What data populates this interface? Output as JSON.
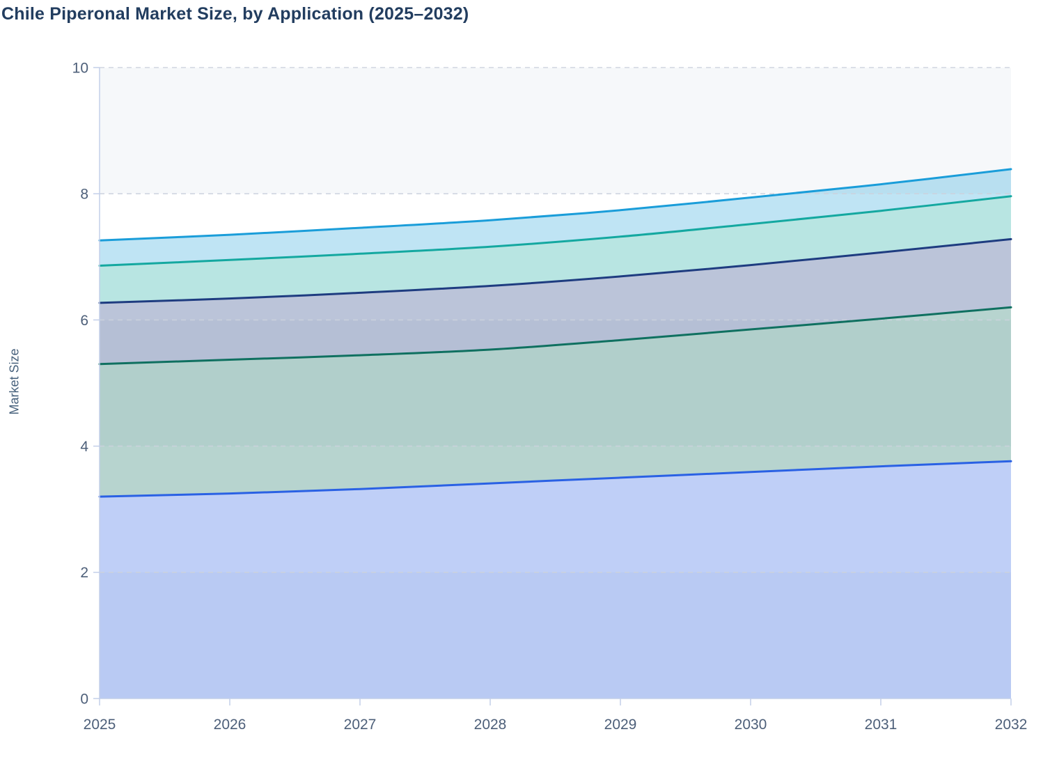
{
  "chart": {
    "title": "Chile Piperonal Market Size, by Application (2025–2032)",
    "ylabel": "Market Size"
  },
  "chart_data": {
    "type": "area",
    "stacked": true,
    "title": "Chile Piperonal Market Size, by Application (2025–2032)",
    "xlabel": "",
    "ylabel": "Market Size",
    "x": [
      2025,
      2026,
      2027,
      2028,
      2029,
      2030,
      2031,
      2032
    ],
    "x_tick_labels": [
      "2025",
      "2026",
      "2027",
      "2028",
      "2029",
      "2030",
      "2031",
      "2032"
    ],
    "y_ticks": [
      0,
      2,
      4,
      6,
      8,
      10
    ],
    "y_tick_labels": [
      "0",
      "2",
      "4",
      "6",
      "8",
      "10"
    ],
    "ylim": [
      0,
      10
    ],
    "grid": "horizontal-dashed",
    "legend_position": "none",
    "series_order": "bottom-to-top (stacked)",
    "series": [
      {
        "values": [
          3.2,
          3.25,
          3.32,
          3.41,
          3.5,
          3.59,
          3.68,
          3.76
        ],
        "cumulative_top": [
          3.2,
          3.25,
          3.32,
          3.41,
          3.5,
          3.59,
          3.68,
          3.76
        ],
        "line_color": "#2a61e4",
        "fill_color": "rgba(42,97,228,0.30)"
      },
      {
        "values": [
          2.1,
          2.12,
          2.12,
          2.12,
          2.18,
          2.26,
          2.34,
          2.44
        ],
        "cumulative_top": [
          5.3,
          5.37,
          5.44,
          5.53,
          5.68,
          5.85,
          6.02,
          6.2
        ],
        "line_color": "#0f7060",
        "fill_color": "rgba(15,112,96,0.30)"
      },
      {
        "values": [
          0.97,
          0.97,
          0.99,
          1.01,
          1.01,
          1.02,
          1.05,
          1.08
        ],
        "cumulative_top": [
          6.27,
          6.34,
          6.43,
          6.54,
          6.69,
          6.87,
          7.07,
          7.28
        ],
        "line_color": "#1e3c80",
        "fill_color": "rgba(30,60,128,0.30)"
      },
      {
        "values": [
          0.59,
          0.61,
          0.62,
          0.62,
          0.63,
          0.65,
          0.66,
          0.68
        ],
        "cumulative_top": [
          6.86,
          6.95,
          7.05,
          7.16,
          7.32,
          7.52,
          7.73,
          7.96
        ],
        "line_color": "#14a8a0",
        "fill_color": "rgba(20,168,160,0.30)"
      },
      {
        "values": [
          0.4,
          0.4,
          0.41,
          0.42,
          0.42,
          0.42,
          0.42,
          0.43
        ],
        "cumulative_top": [
          7.26,
          7.35,
          7.46,
          7.58,
          7.74,
          7.94,
          8.15,
          8.39
        ],
        "line_color": "#1a9dd9",
        "fill_color": "rgba(26,157,217,0.28)"
      }
    ]
  },
  "style": {
    "title_color": "#223d5f",
    "tick_label_color": "#4d5f79",
    "axis_line_color": "#c3cfe9",
    "gridline_color": "#ccd2dd",
    "split_band_color": "#f6f8fa",
    "split_bands": [
      [
        0,
        2
      ],
      [
        4,
        6
      ],
      [
        8,
        10
      ]
    ],
    "line_width": 3
  }
}
